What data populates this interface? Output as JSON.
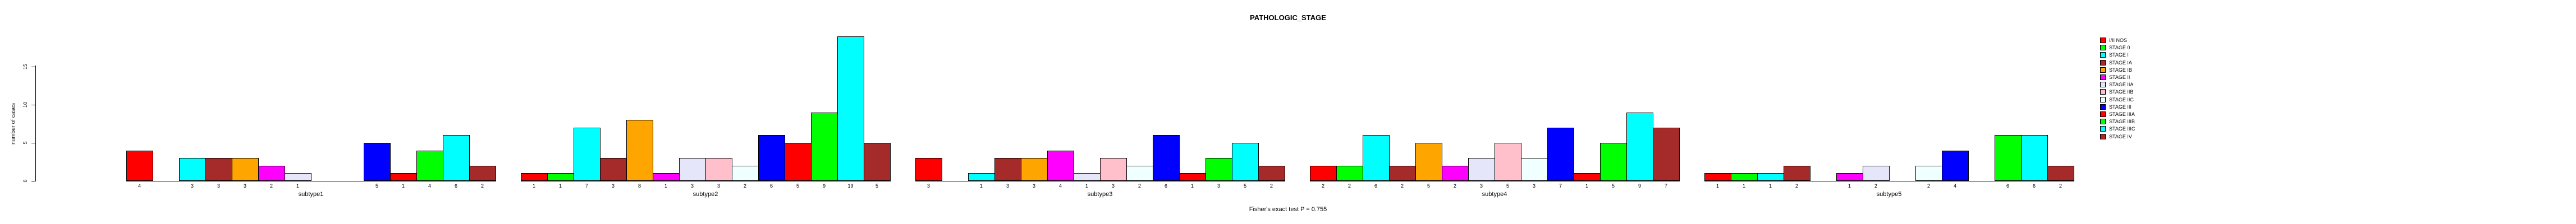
{
  "title": "PATHOLOGIC_STAGE",
  "footer": "Fisher's exact test P = 0.755",
  "y_axis": {
    "label": "number of cases"
  },
  "chart_data": {
    "type": "bar",
    "title": "PATHOLOGIC_STAGE",
    "xlabel": "",
    "ylabel": "number of cases",
    "ylim": [
      0,
      20
    ],
    "yticks": [
      0,
      5,
      10,
      15
    ],
    "grid": false,
    "legend_position": "right",
    "annotation": "Fisher's exact test P = 0.755",
    "categories": [
      "I/II NOS",
      "STAGE 0",
      "STAGE I",
      "STAGE IA",
      "STAGE IB",
      "STAGE II",
      "STAGE IIA",
      "STAGE IIB",
      "STAGE IIC",
      "STAGE III",
      "STAGE IIIA",
      "STAGE IIIB",
      "STAGE IIIC",
      "STAGE IV"
    ],
    "colors": [
      "#FF0000",
      "#00FF00",
      "#00FFFF",
      "#A52A2A",
      "#FFA500",
      "#FF00FF",
      "#E6E6FA",
      "#FFC0CB",
      "#F0FFFF",
      "#0000FF",
      "#FF0000",
      "#00FF00",
      "#00FFFF",
      "#A52A2A"
    ],
    "groups": [
      {
        "label": "subtype1",
        "values": [
          4,
          0,
          3,
          3,
          3,
          2,
          1,
          0,
          0,
          5,
          1,
          4,
          6,
          2
        ]
      },
      {
        "label": "subtype2",
        "values": [
          1,
          1,
          7,
          3,
          8,
          1,
          3,
          3,
          2,
          6,
          5,
          9,
          19,
          5
        ]
      },
      {
        "label": "subtype3",
        "values": [
          3,
          0,
          1,
          3,
          3,
          4,
          1,
          3,
          2,
          6,
          1,
          3,
          5,
          2
        ]
      },
      {
        "label": "subtype4",
        "values": [
          2,
          2,
          6,
          2,
          5,
          2,
          3,
          5,
          3,
          7,
          1,
          5,
          9,
          7
        ]
      },
      {
        "label": "subtype5",
        "values": [
          1,
          1,
          1,
          2,
          0,
          1,
          2,
          0,
          2,
          4,
          0,
          6,
          6,
          2
        ]
      }
    ]
  }
}
